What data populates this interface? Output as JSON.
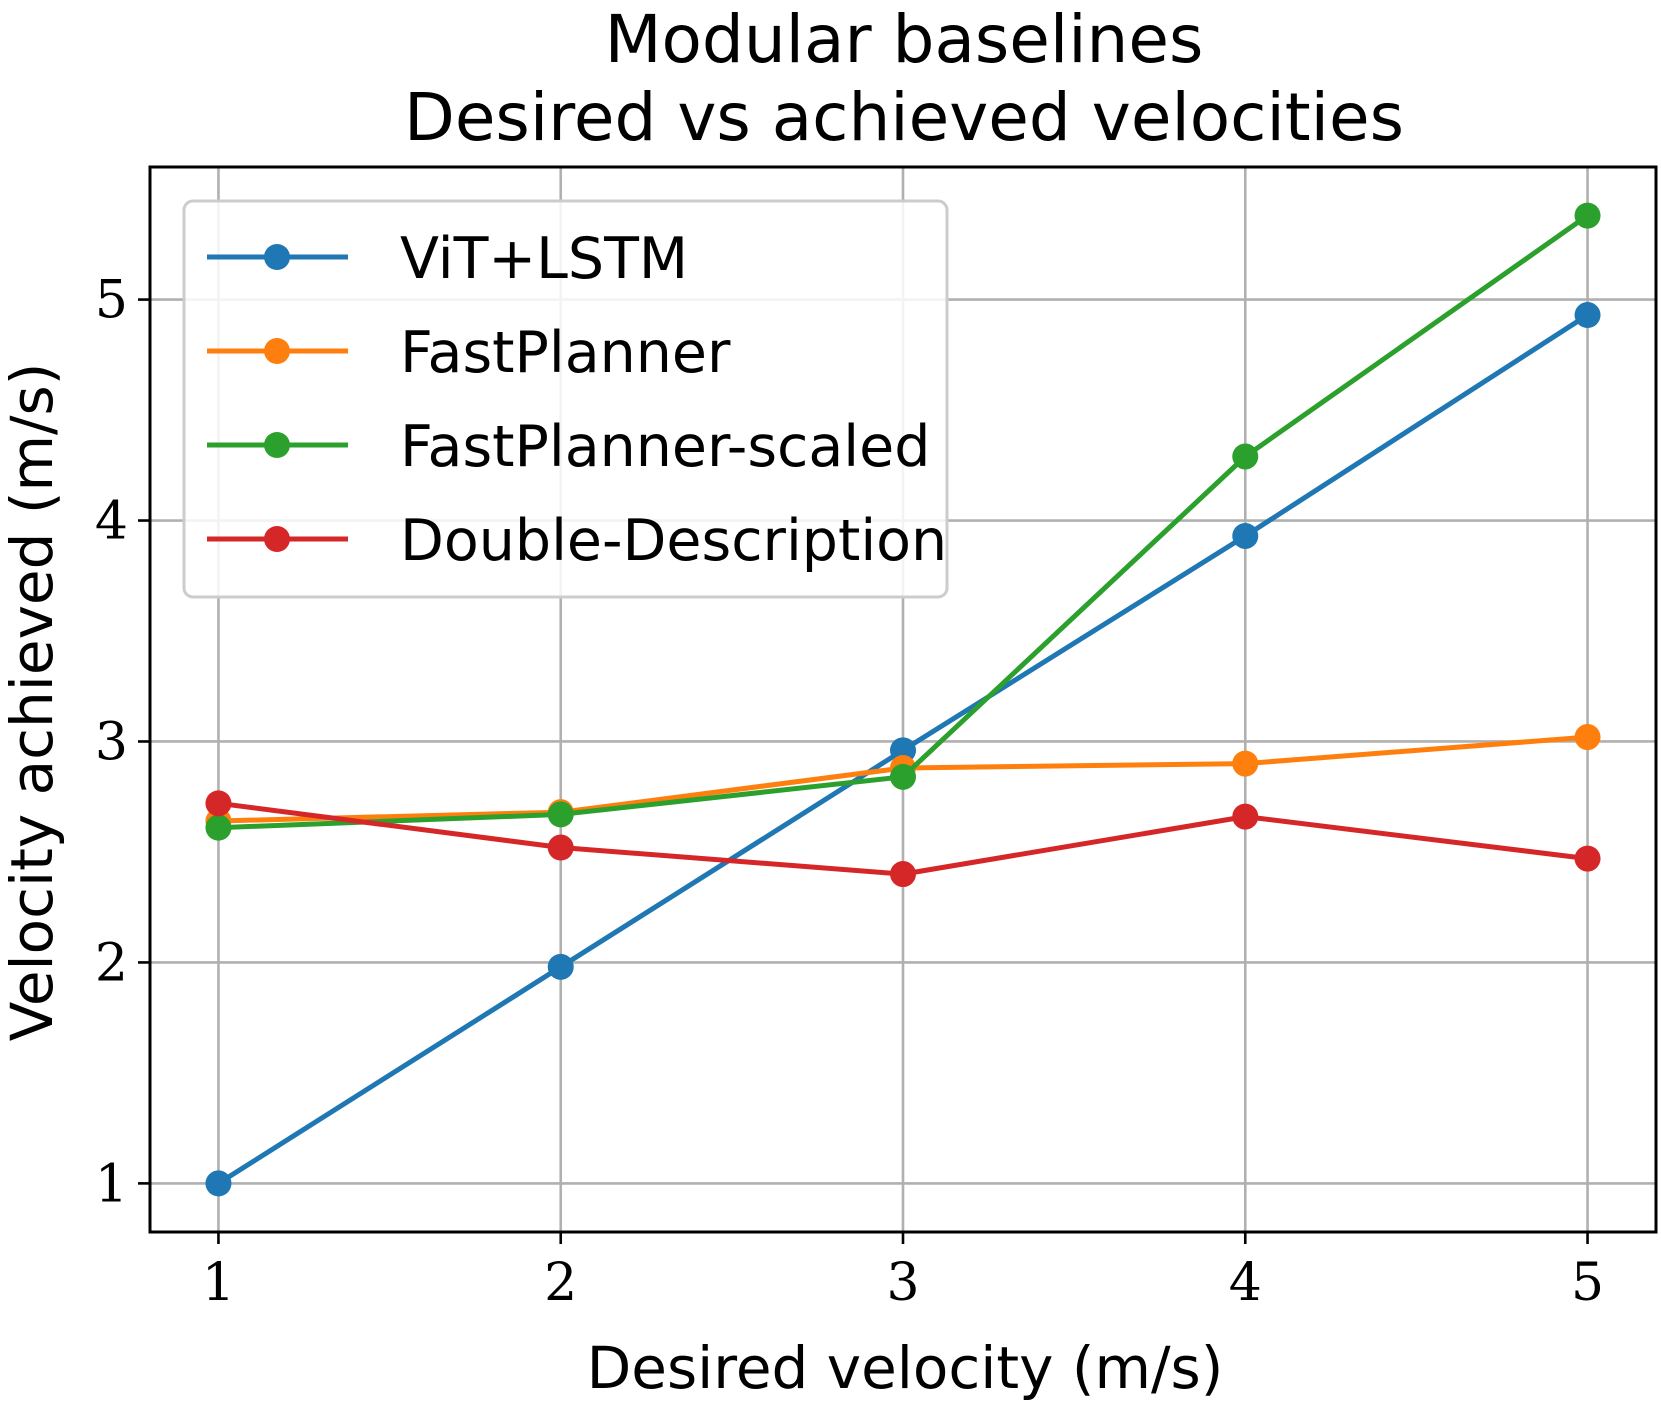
{
  "chart_data": {
    "type": "line",
    "title": [
      "Modular baselines",
      "Desired vs achieved velocities"
    ],
    "xlabel": "Desired velocity (m/s)",
    "ylabel": "Velocity achieved (m/s)",
    "x": [
      1,
      2,
      3,
      4,
      5
    ],
    "xticks": [
      "1",
      "2",
      "3",
      "4",
      "5"
    ],
    "yticks": [
      "1",
      "2",
      "3",
      "4",
      "5"
    ],
    "xlim": [
      0.8,
      5.2
    ],
    "ylim": [
      0.78,
      5.6
    ],
    "grid": true,
    "legend_position": "upper-left",
    "series": [
      {
        "name": "ViT+LSTM",
        "color": "#1f77b4",
        "values": [
          1.0,
          1.98,
          2.96,
          3.93,
          4.93
        ]
      },
      {
        "name": "FastPlanner",
        "color": "#ff7f0e",
        "values": [
          2.64,
          2.68,
          2.88,
          2.9,
          3.02
        ]
      },
      {
        "name": "FastPlanner-scaled",
        "color": "#2ca02c",
        "values": [
          2.61,
          2.67,
          2.84,
          4.29,
          5.38
        ]
      },
      {
        "name": "Double-Description",
        "color": "#d62728",
        "values": [
          2.72,
          2.52,
          2.4,
          2.66,
          2.47
        ]
      }
    ]
  }
}
